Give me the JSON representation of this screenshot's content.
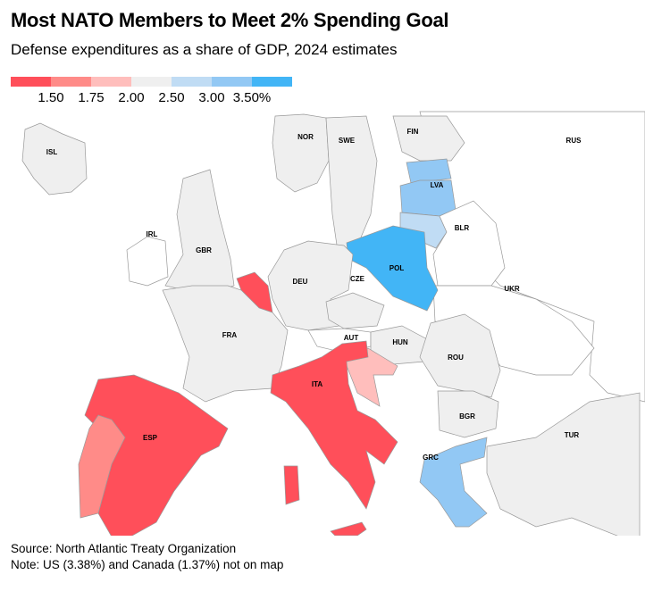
{
  "title": "Most NATO Members to Meet 2% Spending Goal",
  "subtitle": "Defense expenditures as a share of GDP, 2024 estimates",
  "legend": {
    "colors": [
      "#ff4f5a",
      "#ff8b88",
      "#ffbebc",
      "#efefef",
      "#c0dcf4",
      "#92c8f4",
      "#42b5f6"
    ],
    "ticks": [
      "1.50",
      "1.75",
      "2.00",
      "2.50",
      "3.00",
      "3.50%"
    ]
  },
  "colors": {
    "non_nato": "#ffffff",
    "border": "#999999",
    "na": "#efefef"
  },
  "countries": [
    {
      "code": "ISL",
      "label": "ISL",
      "bin": 3
    },
    {
      "code": "NOR",
      "label": "NOR",
      "bin": 3
    },
    {
      "code": "SWE",
      "label": "SWE",
      "bin": 3
    },
    {
      "code": "FIN",
      "label": "FIN",
      "bin": 3
    },
    {
      "code": "EST",
      "label": "",
      "bin": 5
    },
    {
      "code": "LVA",
      "label": "LVA",
      "bin": 5
    },
    {
      "code": "LTU",
      "label": "",
      "bin": 4
    },
    {
      "code": "RUS",
      "label": "RUS",
      "bin": null
    },
    {
      "code": "BLR",
      "label": "BLR",
      "bin": null
    },
    {
      "code": "UKR",
      "label": "UKR",
      "bin": null
    },
    {
      "code": "IRL",
      "label": "IRL",
      "bin": null
    },
    {
      "code": "GBR",
      "label": "GBR",
      "bin": 3
    },
    {
      "code": "POL",
      "label": "POL",
      "bin": 6
    },
    {
      "code": "DEU",
      "label": "DEU",
      "bin": 3
    },
    {
      "code": "BEL",
      "label": "",
      "bin": 0
    },
    {
      "code": "FRA",
      "label": "FRA",
      "bin": 3
    },
    {
      "code": "CZE",
      "label": "CZE",
      "bin": 3
    },
    {
      "code": "AUT",
      "label": "AUT",
      "bin": null
    },
    {
      "code": "HUN",
      "label": "HUN",
      "bin": 3
    },
    {
      "code": "ROU",
      "label": "ROU",
      "bin": 3
    },
    {
      "code": "HRV",
      "label": "",
      "bin": 2
    },
    {
      "code": "ITA",
      "label": "ITA",
      "bin": 0
    },
    {
      "code": "BGR",
      "label": "BGR",
      "bin": 3
    },
    {
      "code": "GRC",
      "label": "GRC",
      "bin": 5
    },
    {
      "code": "TUR",
      "label": "TUR",
      "bin": 3
    },
    {
      "code": "ESP",
      "label": "ESP",
      "bin": 0
    },
    {
      "code": "PRT",
      "label": "",
      "bin": 1
    }
  ],
  "source": "Source: North Atlantic Treaty Organization",
  "note": "Note: US (3.38%) and Canada (1.37%) not on map"
}
